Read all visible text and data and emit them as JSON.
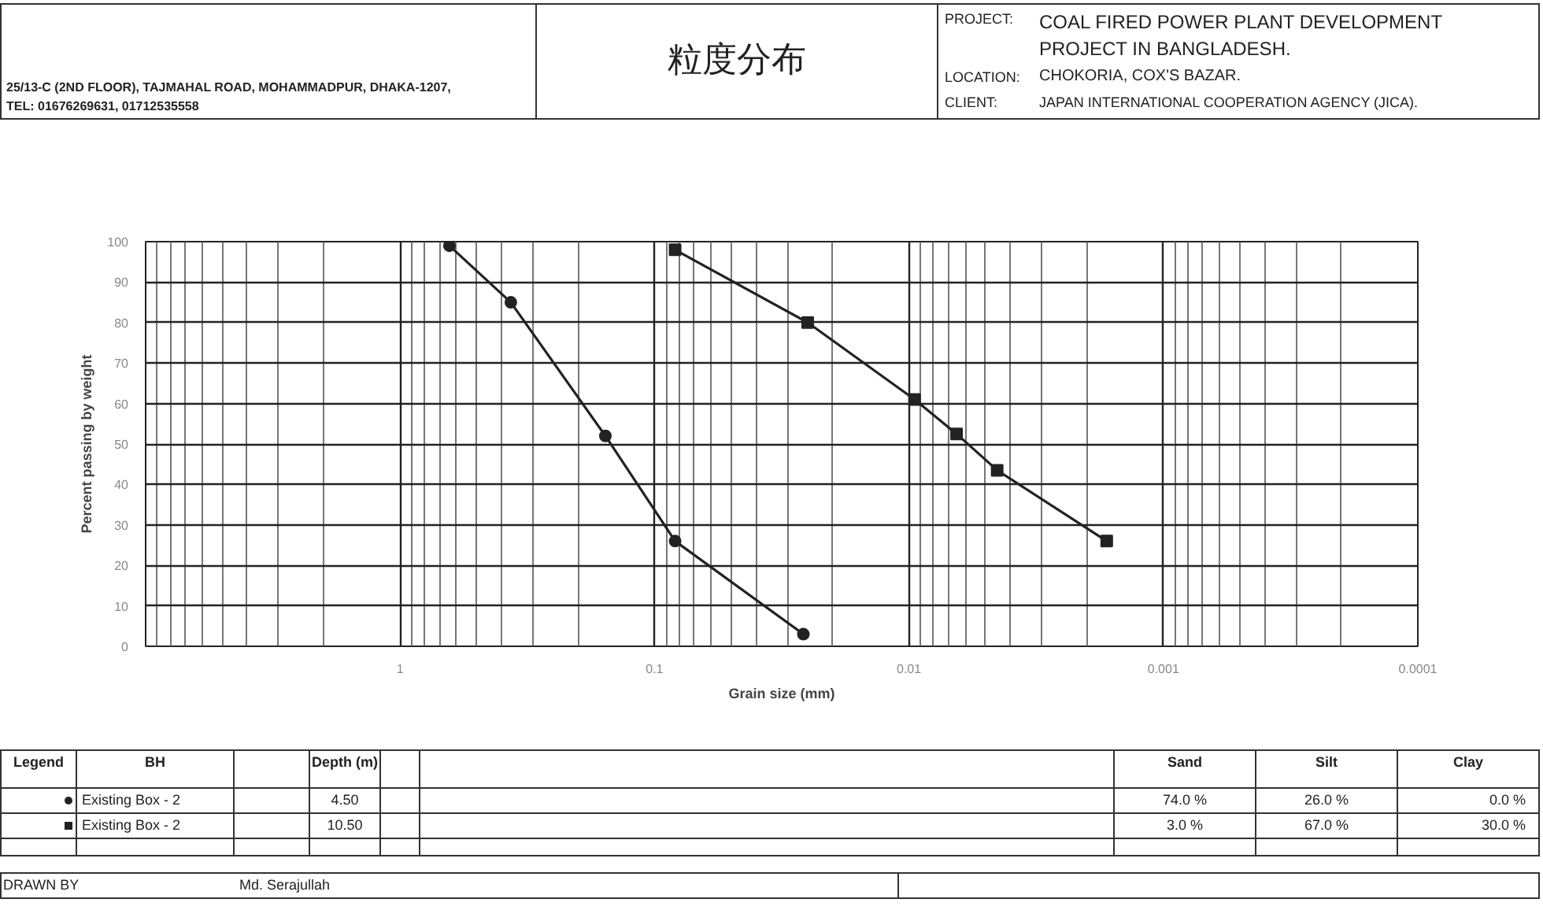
{
  "chart_data": {
    "type": "line",
    "title": "粒度分布",
    "xlabel": "Grain size (mm)",
    "ylabel": "Percent passing by weight",
    "log": "x",
    "xlim": [
      10,
      0.0001
    ],
    "xticks": [
      1,
      0.1,
      0.01,
      0.001,
      0.0001
    ],
    "ylim": [
      0,
      100
    ],
    "yticks": [
      0,
      10,
      20,
      30,
      40,
      50,
      60,
      70,
      80,
      90,
      100
    ],
    "grid": true,
    "legend": "bottom",
    "series": [
      {
        "name": "Existing Box - 2",
        "color": "#222222",
        "marker": "circle",
        "x": [
          0.64,
          0.367,
          0.156,
          0.083,
          0.026
        ],
        "values": [
          99,
          85,
          52,
          26,
          3
        ]
      },
      {
        "name": "Existing Box - 2",
        "color": "#222222",
        "marker": "square",
        "x": [
          0.083,
          0.025,
          0.0095,
          0.0065,
          0.0045,
          0.00167
        ],
        "values": [
          98,
          80,
          61,
          52.5,
          43.5,
          26
        ]
      }
    ],
    "annotations": [
      "25/13-C (2ND FLOOR), TAJMAHAL ROAD, MOHAMMADPUR, DHAKA-1207,",
      "TEL: 01676269631, 01712535558",
      "PROJECT:",
      "COAL FIRED POWER PLANT DEVELOPMENT PROJECT IN BANGLADESH.",
      "LOCATION:",
      "CHOKORIA, COX'S BAZAR.",
      "CLIENT:",
      "JAPAN INTERNATIONAL COOPERATION AGENCY (JICA).",
      "Legend",
      "BH",
      "Depth (m)",
      "Sand",
      "Silt",
      "Clay",
      "4.50",
      "74.0 %",
      "26.0 %",
      "0.0 %",
      "10.50",
      "3.0 %",
      "67.0 %",
      "30.0 %",
      "DRAWN BY",
      "Md. Serajullah"
    ]
  }
}
